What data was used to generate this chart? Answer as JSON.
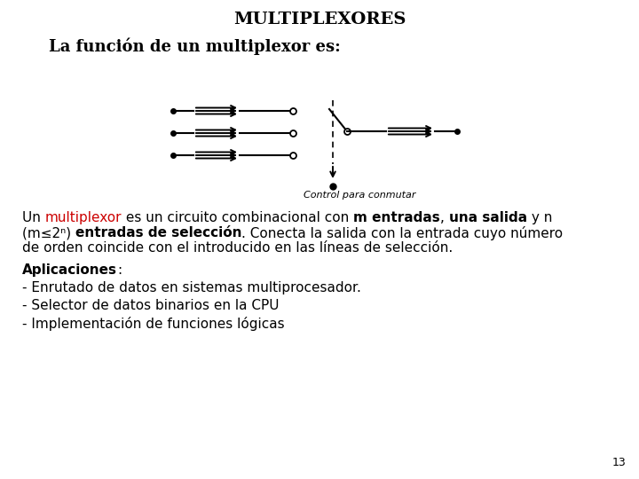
{
  "title": "MULTIPLEXORES",
  "subtitle": "La función de un multiplexor es:",
  "background_color": "#ffffff",
  "title_fontsize": 14,
  "subtitle_fontsize": 13,
  "body_fontsize": 11,
  "highlight_color": "#cc0000",
  "text_color": "#000000",
  "caption_text": "Control para conmutar",
  "aplicaciones_label": "Aplicaciones",
  "bullet1": "- Enrutado de datos en sistemas multiprocesador.",
  "bullet2": "- Selector de datos binarios en la CPU",
  "bullet3": "- Implementación de funciones lógicas",
  "page_number": "13",
  "line1_p1": "Un ",
  "line1_p2": "multiplexor",
  "line1_p3": " es un circuito combinacional con ",
  "line1_p4": "m entradas",
  "line1_p5": ", ",
  "line1_p6": "una salida",
  "line1_p7": " y n",
  "line2_p1": "(m≤2ⁿ) ",
  "line2_p2": "entradas de selección",
  "line2_p3": ". Conecta la salida con la entrada cuyo número",
  "line3": "de orden coincide con el introducido en las líneas de selección."
}
